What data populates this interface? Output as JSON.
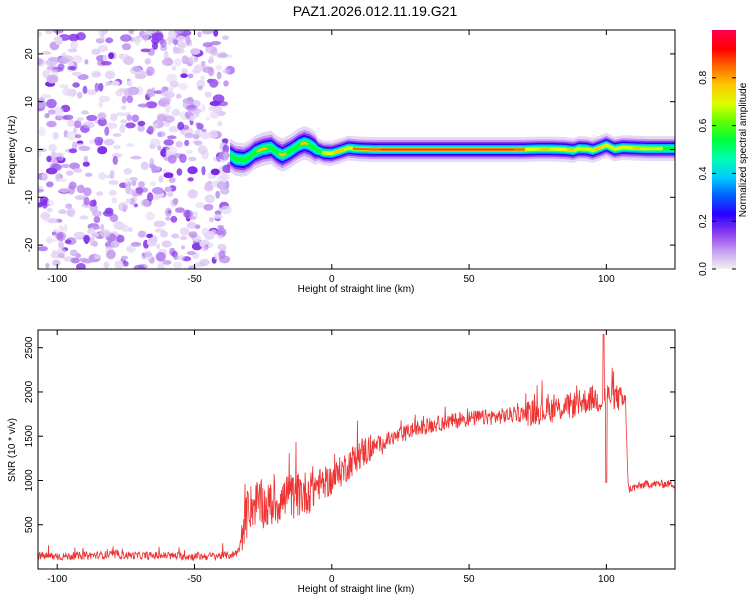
{
  "title": "PAZ1.2026.012.11.19.G21",
  "chart_data": [
    {
      "type": "heatmap",
      "id": "spectrogram",
      "xlabel": "Height of straight line (km)",
      "ylabel": "Frequency (Hz)",
      "xlim": [
        -107,
        125
      ],
      "ylim": [
        -25,
        25
      ],
      "xticks": [
        -100,
        -50,
        0,
        50,
        100
      ],
      "yticks": [
        -20,
        -10,
        0,
        10,
        20
      ],
      "noise_region_x": [
        -107,
        -37
      ],
      "ridge": {
        "x": [
          -37,
          -35,
          -32,
          -30,
          -28,
          -25,
          -22,
          -20,
          -18,
          -15,
          -12,
          -10,
          -8,
          -5,
          -3,
          0,
          3,
          6,
          10,
          15,
          20,
          25,
          30,
          40,
          50,
          60,
          70,
          75,
          80,
          85,
          88,
          90,
          93,
          95,
          97,
          100,
          103,
          106,
          110,
          115,
          120,
          125
        ],
        "y": [
          -1.2,
          -2.0,
          -2.2,
          -1.6,
          -0.6,
          0.1,
          0.4,
          -0.6,
          -1.2,
          -0.3,
          0.9,
          1.4,
          1.0,
          -0.2,
          -0.7,
          -0.8,
          -0.3,
          0.3,
          0.1,
          0.0,
          0.0,
          0.0,
          0.0,
          0.0,
          0.0,
          0.0,
          0.0,
          0.1,
          0.1,
          0.0,
          -0.2,
          0.2,
          0.1,
          -0.2,
          0.2,
          0.9,
          0.1,
          0.4,
          0.3,
          0.2,
          0.2,
          0.2
        ]
      },
      "colorbar": {
        "label": "Normalized spectral amplitude",
        "range": [
          0,
          1
        ],
        "ticks": [
          "0.0",
          "0.2",
          "0.4",
          "0.6",
          "0.8"
        ],
        "colors": [
          "#f0f0f0",
          "#c8a4f0",
          "#8c3cf0",
          "#2800ff",
          "#0064ff",
          "#00c8ff",
          "#00ffb4",
          "#00ff3c",
          "#64ff00",
          "#dcff00",
          "#ffc800",
          "#ff6400",
          "#ff0000",
          "#ff0050"
        ]
      }
    },
    {
      "type": "line",
      "id": "snr",
      "xlabel": "Height of straight line (km)",
      "ylabel": "SNR (10 * v/v)",
      "xlim": [
        -107,
        125
      ],
      "ylim": [
        0,
        2700
      ],
      "xticks": [
        -100,
        -50,
        0,
        50,
        100
      ],
      "yticks": [
        500,
        1000,
        1500,
        2000,
        2500
      ],
      "color": "#ee3333",
      "series": [
        {
          "name": "SNR",
          "x": [
            -107,
            -100,
            -90,
            -80,
            -70,
            -60,
            -50,
            -40,
            -36,
            -34,
            -33,
            -32,
            -30,
            -27,
            -24,
            -20,
            -15,
            -10,
            -5,
            0,
            5,
            10,
            20,
            30,
            40,
            50,
            60,
            70,
            80,
            85,
            90,
            95,
            98,
            100,
            103,
            106,
            107,
            108,
            110,
            115,
            120,
            125
          ],
          "y": [
            150,
            140,
            150,
            160,
            150,
            150,
            140,
            150,
            160,
            200,
            320,
            460,
            700,
            750,
            700,
            750,
            820,
            850,
            950,
            1000,
            1150,
            1300,
            1450,
            1580,
            1650,
            1700,
            1720,
            1760,
            1800,
            1830,
            1870,
            1930,
            1900,
            1960,
            1950,
            1900,
            1850,
            900,
            920,
            960,
            960,
            960
          ]
        }
      ]
    }
  ]
}
